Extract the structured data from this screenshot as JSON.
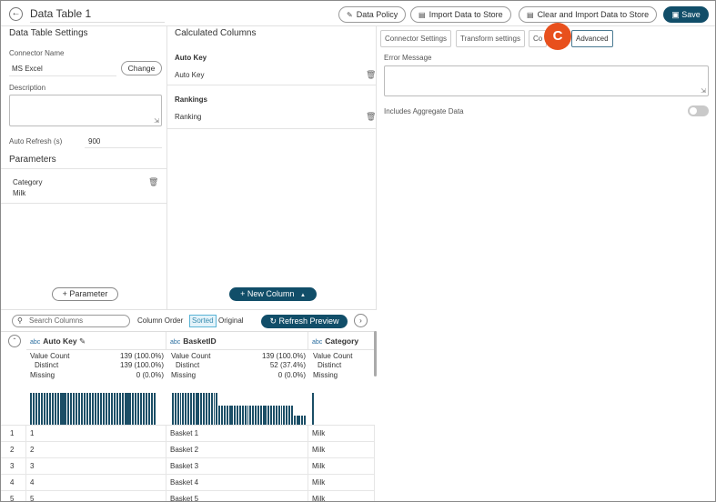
{
  "header": {
    "title": "Data Table 1",
    "buttons": {
      "data_policy": "Data Policy",
      "import": "Import Data to Store",
      "clear_import": "Clear and Import Data to Store",
      "save": "Save"
    }
  },
  "left_panel": {
    "heading": "Data Table Settings",
    "connector_label": "Connector Name",
    "connector_value": "MS Excel",
    "change_label": "Change",
    "description_label": "Description",
    "auto_refresh_label": "Auto Refresh (s)",
    "auto_refresh_value": "900",
    "parameters_heading": "Parameters",
    "parameter": {
      "name": "Category",
      "value": "Milk"
    },
    "add_parameter_label": "Parameter"
  },
  "mid_panel": {
    "heading": "Calculated Columns",
    "columns": [
      {
        "group": "Auto Key",
        "name": "Auto Key"
      },
      {
        "group": "Rankings",
        "name": "Ranking"
      }
    ],
    "new_column_label": "New Column"
  },
  "right_panel": {
    "tabs": [
      "Connector Settings",
      "Transform settings",
      "Co",
      "Advanced"
    ],
    "active_tab": "Advanced",
    "badge": "C",
    "error_message_label": "Error Message",
    "aggregate_label": "Includes Aggregate Data",
    "aggregate_enabled": false
  },
  "preview_toolbar": {
    "search_placeholder": "Search Columns",
    "column_order_label": "Column Order",
    "sorted_label": "Sorted",
    "original_label": "Original",
    "refresh_label": "Refresh Preview"
  },
  "grid": {
    "stat_labels": {
      "count": "Value Count",
      "distinct": "Distinct",
      "missing": "Missing"
    },
    "type_label": "abc",
    "columns": [
      {
        "name": "Auto Key",
        "value_count": "139 (100.0%)",
        "distinct": "139 (100.0%)",
        "missing": "0 (0.0%)",
        "histogram": [
          1,
          1,
          1,
          1,
          1,
          1,
          1,
          1,
          1,
          1,
          1,
          1,
          1,
          1,
          1,
          1,
          1,
          1,
          1,
          1,
          1,
          1,
          1,
          1,
          1,
          1,
          1,
          1,
          1,
          1,
          1,
          1,
          1,
          1,
          1,
          1,
          1,
          1,
          1,
          1,
          1,
          1,
          1,
          1,
          1,
          1,
          1
        ]
      },
      {
        "name": "BasketID",
        "value_count": "139 (100.0%)",
        "distinct": "52 (37.4%)",
        "missing": "0 (0.0%)",
        "histogram": [
          1,
          1,
          1,
          1,
          1,
          1,
          1,
          1,
          1,
          1,
          1,
          1,
          1,
          1,
          1,
          1,
          1,
          1,
          0.6,
          0.6,
          0.6,
          0.6,
          0.6,
          0.6,
          0.6,
          0.6,
          0.6,
          0.6,
          0.6,
          0.6,
          0.6,
          0.6,
          0.6,
          0.6,
          0.6,
          0.6,
          0.6,
          0.6,
          0.6,
          0.6,
          0.6,
          0.6,
          0.6,
          0.6,
          0.6,
          0.6,
          0.6,
          0.3,
          0.3,
          0.3,
          0.3,
          0.3
        ]
      },
      {
        "name": "Category",
        "value_count": "",
        "distinct": "",
        "missing": "",
        "histogram": [
          1
        ]
      }
    ],
    "rows": [
      {
        "num": "1",
        "auto_key": "1",
        "basket": "Basket 1",
        "category": "Milk"
      },
      {
        "num": "2",
        "auto_key": "2",
        "basket": "Basket 2",
        "category": "Milk"
      },
      {
        "num": "3",
        "auto_key": "3",
        "basket": "Basket 3",
        "category": "Milk"
      },
      {
        "num": "4",
        "auto_key": "4",
        "basket": "Basket 4",
        "category": "Milk"
      },
      {
        "num": "5",
        "auto_key": "5",
        "basket": "Basket 5",
        "category": "Milk"
      }
    ]
  },
  "colors": {
    "primary": "#114e69",
    "badge": "#e8501d",
    "highlight": "#5ab4d6"
  }
}
